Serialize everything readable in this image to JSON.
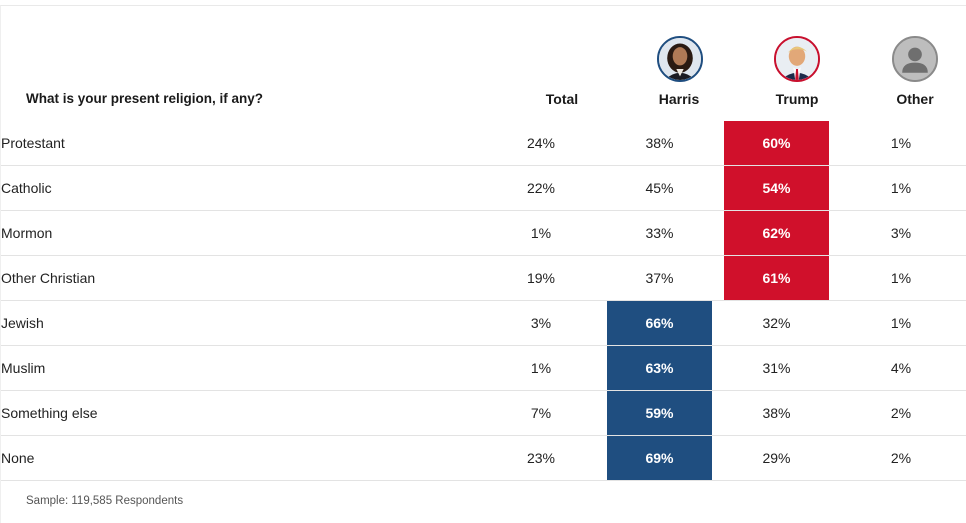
{
  "header": {
    "question": "What is your present religion, if any?",
    "columns": [
      "Total",
      "Harris",
      "Trump",
      "Other"
    ]
  },
  "colors": {
    "harris": "#1f4e80",
    "trump": "#d0102b"
  },
  "chart_data": {
    "type": "table",
    "columns": [
      "Total",
      "Harris",
      "Trump",
      "Other"
    ],
    "rows": [
      {
        "label": "Protestant",
        "values": [
          "24%",
          "38%",
          "60%",
          "1%"
        ],
        "winner": "trump"
      },
      {
        "label": "Catholic",
        "values": [
          "22%",
          "45%",
          "54%",
          "1%"
        ],
        "winner": "trump"
      },
      {
        "label": "Mormon",
        "values": [
          "1%",
          "33%",
          "62%",
          "3%"
        ],
        "winner": "trump"
      },
      {
        "label": "Other Christian",
        "values": [
          "19%",
          "37%",
          "61%",
          "1%"
        ],
        "winner": "trump"
      },
      {
        "label": "Jewish",
        "values": [
          "3%",
          "66%",
          "32%",
          "1%"
        ],
        "winner": "harris"
      },
      {
        "label": "Muslim",
        "values": [
          "1%",
          "63%",
          "31%",
          "4%"
        ],
        "winner": "harris"
      },
      {
        "label": "Something else",
        "values": [
          "7%",
          "59%",
          "38%",
          "2%"
        ],
        "winner": "harris"
      },
      {
        "label": "None",
        "values": [
          "23%",
          "69%",
          "29%",
          "2%"
        ],
        "winner": "harris"
      }
    ]
  },
  "footer": {
    "sample": "Sample: 119,585 Respondents"
  },
  "icons": {
    "harris": "candidate-photo-icon",
    "trump": "candidate-photo-icon",
    "other": "person-placeholder-icon"
  }
}
